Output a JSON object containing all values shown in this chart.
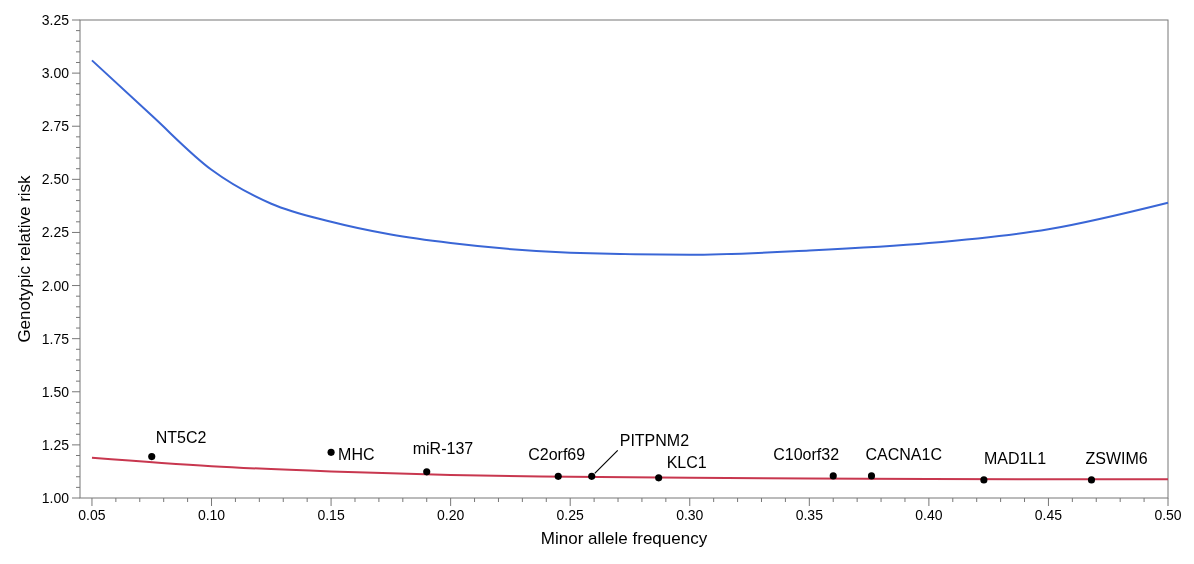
{
  "chart_data": {
    "type": "line",
    "xlabel": "Minor allele frequency",
    "ylabel": "Genotypic relative risk",
    "xlim": [
      0.045,
      0.5
    ],
    "ylim": [
      1.0,
      3.25
    ],
    "xticks": [
      {
        "value": 0.05,
        "label": "0.05"
      },
      {
        "value": 0.1,
        "label": "0.10"
      },
      {
        "value": 0.15,
        "label": "0.15"
      },
      {
        "value": 0.2,
        "label": "0.20"
      },
      {
        "value": 0.25,
        "label": "0.25"
      },
      {
        "value": 0.3,
        "label": "0.30"
      },
      {
        "value": 0.35,
        "label": "0.35"
      },
      {
        "value": 0.4,
        "label": "0.40"
      },
      {
        "value": 0.45,
        "label": "0.45"
      },
      {
        "value": 0.5,
        "label": "0.50"
      }
    ],
    "yticks": [
      {
        "value": 1.0,
        "label": "1.00"
      },
      {
        "value": 1.25,
        "label": "1.25"
      },
      {
        "value": 1.5,
        "label": "1.50"
      },
      {
        "value": 1.75,
        "label": "1.75"
      },
      {
        "value": 2.0,
        "label": "2.00"
      },
      {
        "value": 2.25,
        "label": "2.25"
      },
      {
        "value": 2.5,
        "label": "2.50"
      },
      {
        "value": 2.75,
        "label": "2.75"
      },
      {
        "value": 3.0,
        "label": "3.00"
      },
      {
        "value": 3.25,
        "label": "3.25"
      }
    ],
    "grid": false,
    "series": [
      {
        "color": "#3a66d6",
        "x": [
          0.05,
          0.075,
          0.1,
          0.125,
          0.15,
          0.175,
          0.2,
          0.25,
          0.3,
          0.35,
          0.4,
          0.45,
          0.5
        ],
        "values": [
          3.06,
          2.8,
          2.545,
          2.385,
          2.3,
          2.24,
          2.2,
          2.155,
          2.145,
          2.165,
          2.2,
          2.265,
          2.39
        ]
      },
      {
        "color": "#c8374f",
        "x": [
          0.05,
          0.1,
          0.15,
          0.2,
          0.25,
          0.3,
          0.35,
          0.4,
          0.45,
          0.5
        ],
        "values": [
          1.19,
          1.15,
          1.125,
          1.108,
          1.1,
          1.095,
          1.092,
          1.09,
          1.088,
          1.088
        ]
      },
      {
        "type": "scatter",
        "color": "#000000",
        "marker": "circle",
        "x": [
          0.075,
          0.15,
          0.19,
          0.245,
          0.259,
          0.287,
          0.36,
          0.376,
          0.423,
          0.468
        ],
        "values": [
          1.195,
          1.215,
          1.123,
          1.102,
          1.102,
          1.095,
          1.104,
          1.104,
          1.085,
          1.085
        ]
      }
    ],
    "annotations": [
      {
        "text": "NT5C2",
        "x": 0.075,
        "y": 1.195
      },
      {
        "text": "MHC",
        "x": 0.15,
        "y": 1.215
      },
      {
        "text": "miR-137",
        "x": 0.19,
        "y": 1.123
      },
      {
        "text": "C2orf69",
        "x": 0.245,
        "y": 1.102
      },
      {
        "text": "PITPNM2",
        "x": 0.259,
        "y": 1.102
      },
      {
        "text": "KLC1",
        "x": 0.287,
        "y": 1.095
      },
      {
        "text": "C10orf32",
        "x": 0.36,
        "y": 1.104
      },
      {
        "text": "CACNA1C",
        "x": 0.376,
        "y": 1.104
      },
      {
        "text": "MAD1L1",
        "x": 0.423,
        "y": 1.085
      },
      {
        "text": "ZSWIM6",
        "x": 0.468,
        "y": 1.085
      }
    ]
  }
}
